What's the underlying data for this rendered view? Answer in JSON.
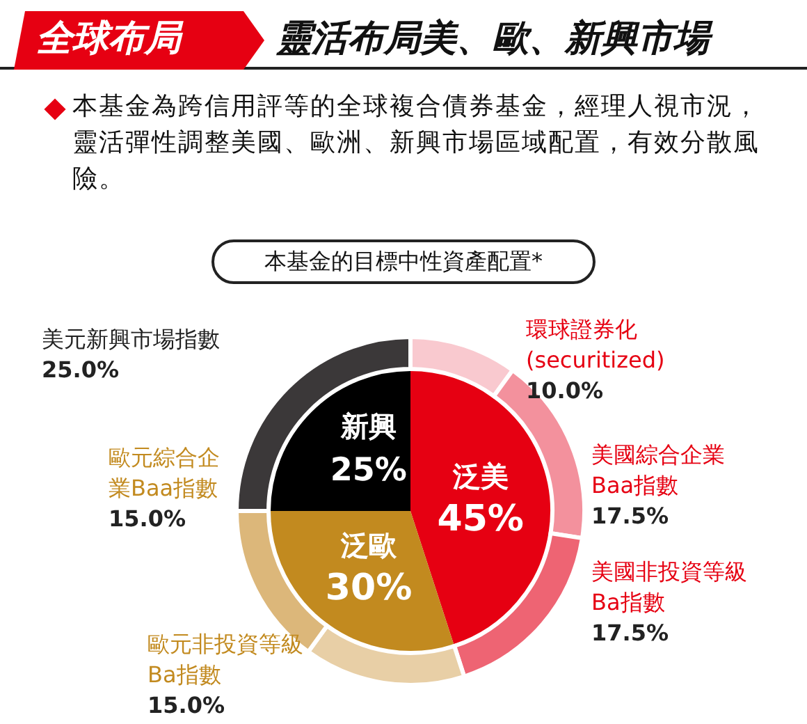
{
  "chart_data": [
    {
      "type": "pie",
      "title": "全球布局",
      "subtitle": "靈活布局美、歐、新興市場",
      "annotations": [
        "本基金為跨信用評等的全球複合債券基金，經理人視市況，靈活彈性調整美國、歐洲、新興市場區域配置，有效分散風險。",
        "本基金的目標中性資產配置*"
      ],
      "categories": [
        "泛美",
        "泛歐",
        "新興"
      ],
      "values": [
        45,
        30,
        25
      ],
      "colors": [
        "#e60012",
        "#c28a1f",
        "#000000"
      ],
      "value_labels": [
        "45%",
        "30%",
        "25%"
      ]
    },
    {
      "type": "donut",
      "categories": [
        "環球證券化(securitized)",
        "美國綜合企業Baa指數",
        "美國非投資等級Ba指數",
        "歐元非投資等級Ba指數",
        "歐元綜合企業Baa指數",
        "美元新興市場指數"
      ],
      "values": [
        10,
        17.5,
        17.5,
        15,
        15,
        25
      ],
      "colors": [
        "#f9c9cf",
        "#f3919d",
        "#ee6473",
        "#e8cfa6",
        "#dcb77a",
        "#3b3839"
      ],
      "value_labels": [
        "10.0%",
        "17.5%",
        "17.5%",
        "15.0%",
        "15.0%",
        "25.0%"
      ]
    }
  ]
}
